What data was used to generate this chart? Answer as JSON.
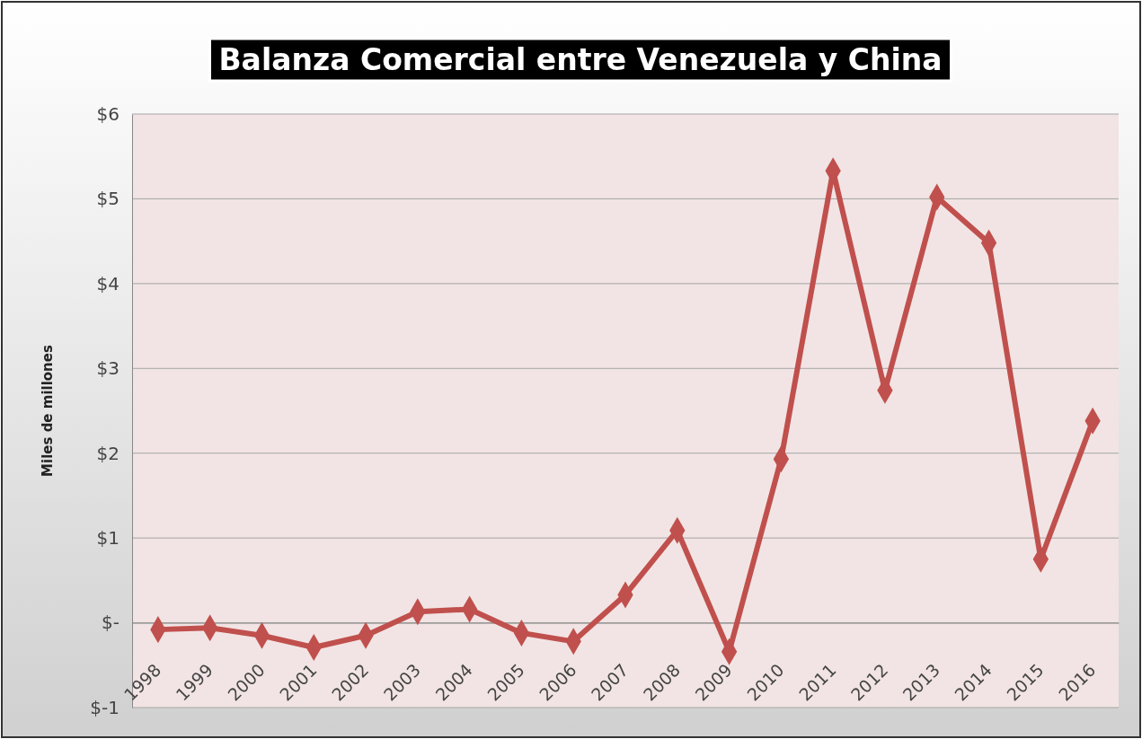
{
  "chart_data": {
    "type": "line",
    "title": "Balanza Comercial entre Venezuela y China",
    "ylabel": "Miles de millones",
    "categories": [
      "1998",
      "1999",
      "2000",
      "2001",
      "2002",
      "2003",
      "2004",
      "2005",
      "2006",
      "2007",
      "2008",
      "2009",
      "2010",
      "2011",
      "2012",
      "2013",
      "2014",
      "2015",
      "2016"
    ],
    "series": [
      {
        "color": "#c0504d",
        "values": [
          -0.08,
          -0.06,
          -0.15,
          -0.29,
          -0.15,
          0.13,
          0.16,
          -0.12,
          -0.22,
          0.33,
          1.09,
          -0.34,
          1.93,
          5.33,
          2.74,
          5.02,
          4.48,
          0.75,
          2.38
        ]
      }
    ],
    "ylim": [
      -1,
      6
    ],
    "yticks": [
      {
        "value": -1,
        "label": "$-1"
      },
      {
        "value": 0,
        "label": "$-"
      },
      {
        "value": 1,
        "label": "$1"
      },
      {
        "value": 2,
        "label": "$2"
      },
      {
        "value": 3,
        "label": "$3"
      },
      {
        "value": 4,
        "label": "$4"
      },
      {
        "value": 5,
        "label": "$5"
      },
      {
        "value": 6,
        "label": "$6"
      }
    ],
    "grid": "y",
    "marker": "diamond",
    "line_style": "solid"
  }
}
